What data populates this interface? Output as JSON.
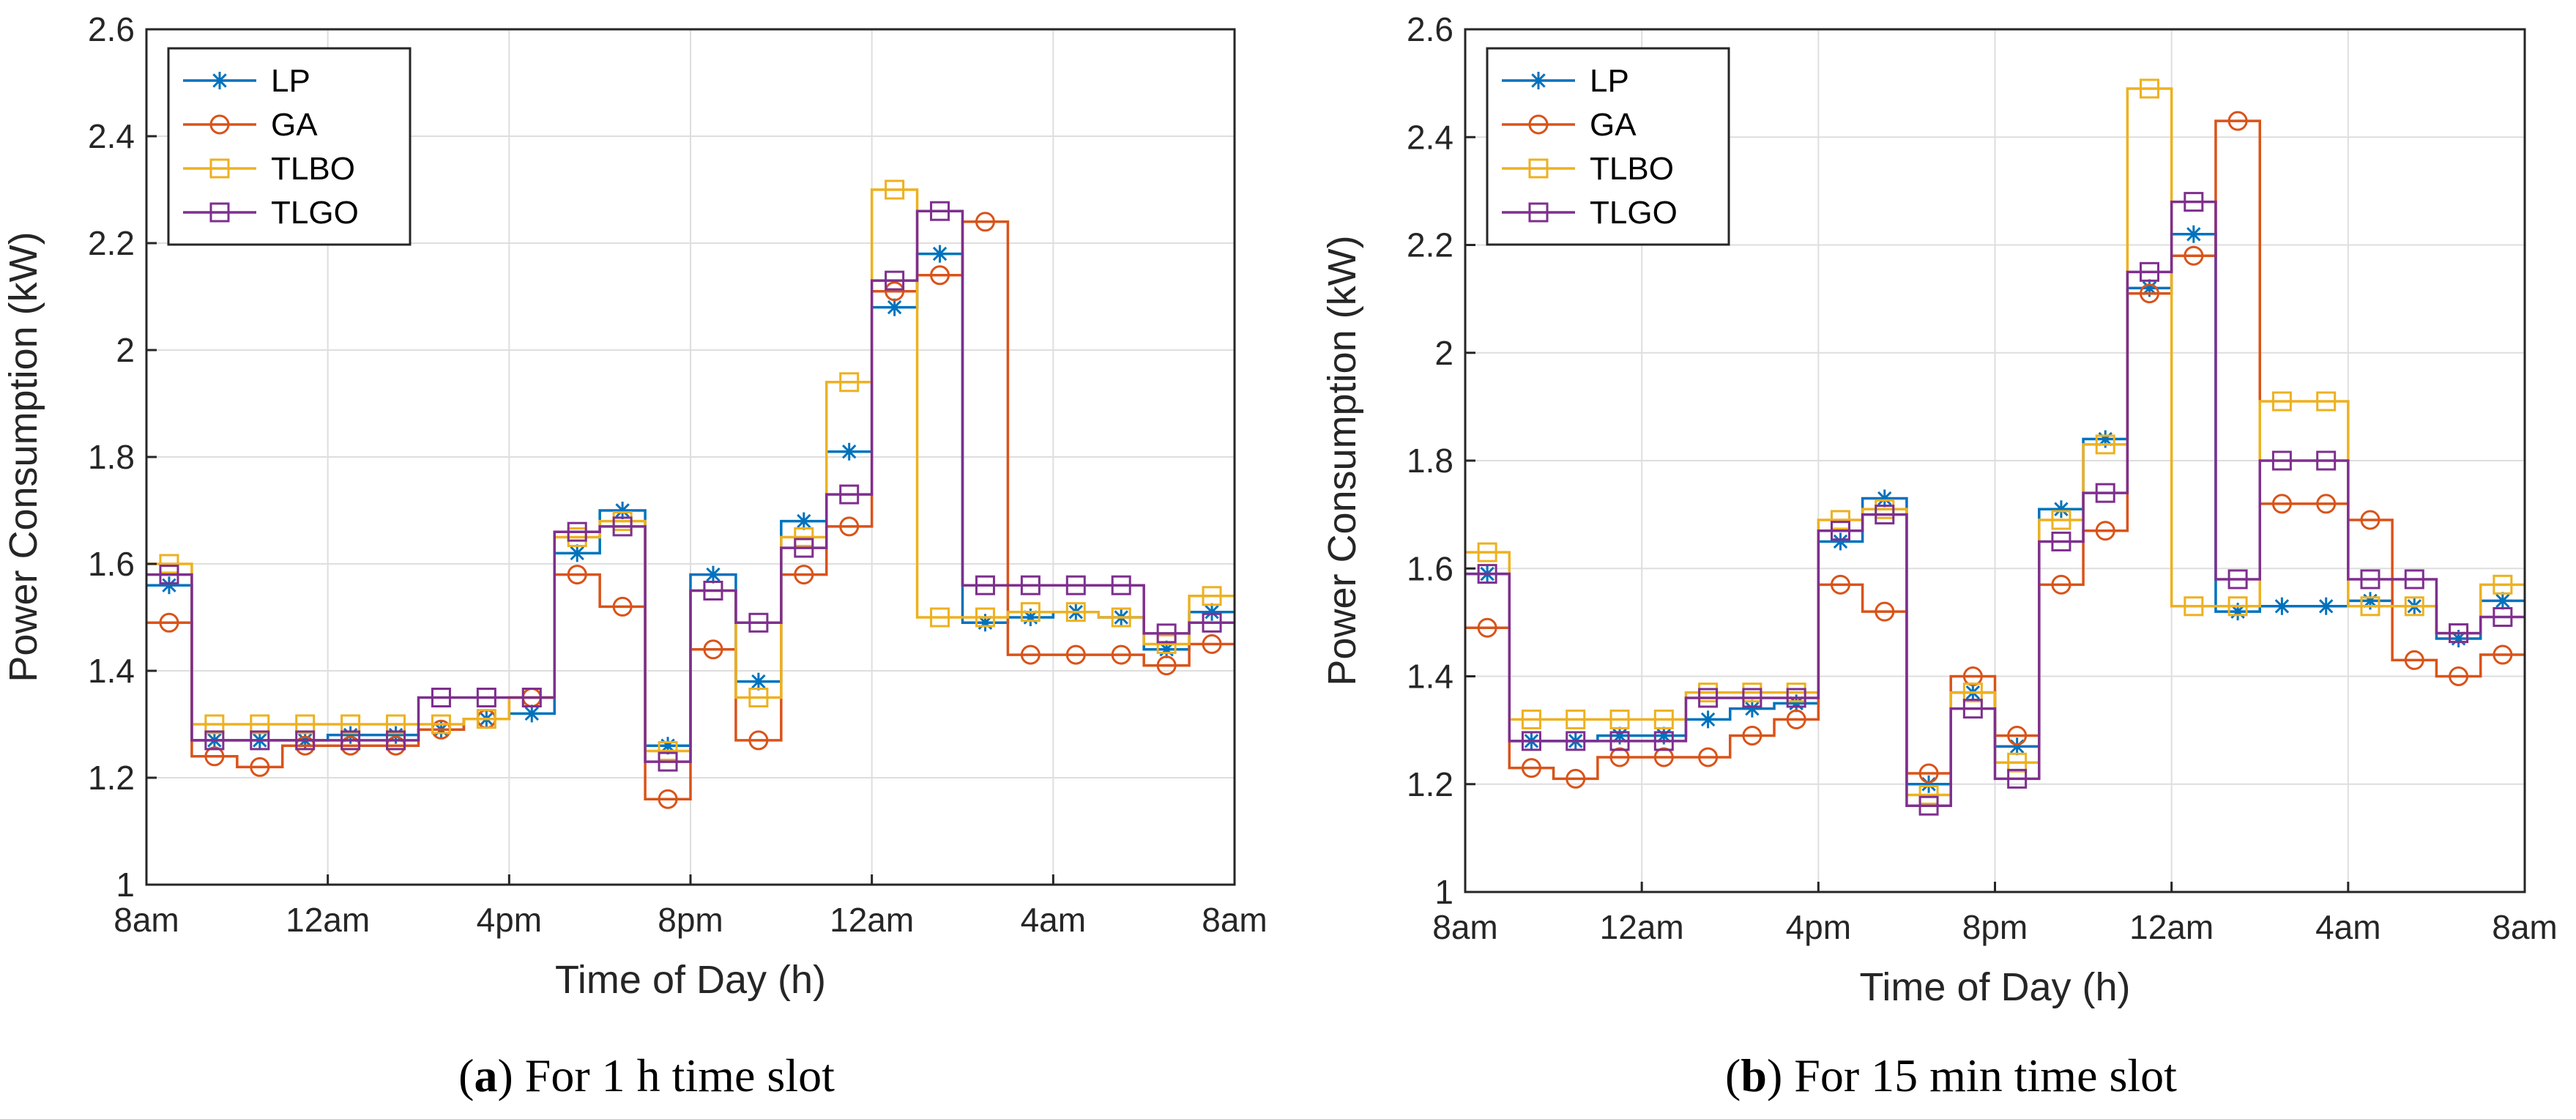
{
  "chart_data": [
    {
      "type": "line",
      "id": "a",
      "caption_letter": "a",
      "caption_open": "(",
      "caption_close": ")",
      "caption_text": " For 1 h time slot",
      "xlabel": "Time of Day (h)",
      "ylabel": "Power Consumption (kW)",
      "xlim": [
        0,
        24
      ],
      "ylim": [
        1,
        2.6
      ],
      "xticks": [
        0,
        4,
        8,
        12,
        16,
        20,
        24
      ],
      "xtick_labels": [
        "8am",
        "12am",
        "4pm",
        "8pm",
        "12am",
        "4am",
        "8am"
      ],
      "yticks": [
        1,
        1.2,
        1.4,
        1.6,
        1.8,
        2,
        2.2,
        2.4,
        2.6
      ],
      "ytick_labels": [
        "1",
        "1.2",
        "1.4",
        "1.6",
        "1.8",
        "2",
        "2.2",
        "2.4",
        "2.6"
      ],
      "grid": true,
      "legend_position": "top-left",
      "step": "post",
      "x": [
        0,
        1,
        2,
        3,
        4,
        5,
        6,
        7,
        8,
        9,
        10,
        11,
        12,
        13,
        14,
        15,
        16,
        17,
        18,
        19,
        20,
        21,
        22,
        23,
        24
      ],
      "series": [
        {
          "name": "LP",
          "color": "#0072BD",
          "marker": "asterisk",
          "values": [
            1.56,
            1.27,
            1.27,
            1.27,
            1.28,
            1.28,
            1.29,
            1.31,
            1.32,
            1.62,
            1.7,
            1.26,
            1.58,
            1.38,
            1.68,
            1.81,
            2.08,
            2.18,
            1.49,
            1.5,
            1.51,
            1.5,
            1.44,
            1.51,
            1.51
          ]
        },
        {
          "name": "GA",
          "color": "#D95319",
          "marker": "circle",
          "values": [
            1.49,
            1.24,
            1.22,
            1.26,
            1.26,
            1.26,
            1.29,
            1.31,
            1.35,
            1.58,
            1.52,
            1.16,
            1.44,
            1.27,
            1.58,
            1.67,
            2.11,
            2.14,
            2.24,
            1.43,
            1.43,
            1.43,
            1.41,
            1.45,
            1.45
          ]
        },
        {
          "name": "TLBO",
          "color": "#EDB120",
          "marker": "square",
          "values": [
            1.6,
            1.3,
            1.3,
            1.3,
            1.3,
            1.3,
            1.3,
            1.31,
            1.35,
            1.65,
            1.68,
            1.25,
            1.55,
            1.35,
            1.65,
            1.94,
            2.3,
            1.5,
            1.5,
            1.51,
            1.51,
            1.5,
            1.45,
            1.54,
            1.54
          ]
        },
        {
          "name": "TLGO",
          "color": "#7E2F8E",
          "marker": "square",
          "values": [
            1.58,
            1.27,
            1.27,
            1.27,
            1.27,
            1.27,
            1.35,
            1.35,
            1.35,
            1.66,
            1.67,
            1.23,
            1.55,
            1.49,
            1.63,
            1.73,
            2.13,
            2.26,
            1.56,
            1.56,
            1.56,
            1.56,
            1.47,
            1.49,
            1.49
          ]
        }
      ]
    },
    {
      "type": "line",
      "id": "b",
      "caption_letter": "b",
      "caption_open": "(",
      "caption_close": ")",
      "caption_text": " For 15 min time slot",
      "xlabel": "Time of Day (h)",
      "ylabel": "Power Consumption (kW)",
      "xlim": [
        0,
        24
      ],
      "ylim": [
        1,
        2.6
      ],
      "xticks": [
        0,
        4,
        8,
        12,
        16,
        20,
        24
      ],
      "xtick_labels": [
        "8am",
        "12am",
        "4pm",
        "8pm",
        "12am",
        "4am",
        "8am"
      ],
      "yticks": [
        1,
        1.2,
        1.4,
        1.6,
        1.8,
        2,
        2.2,
        2.4,
        2.6
      ],
      "ytick_labels": [
        "1",
        "1.2",
        "1.4",
        "1.6",
        "1.8",
        "2",
        "2.2",
        "2.4",
        "2.6"
      ],
      "grid": true,
      "legend_position": "top-left",
      "step": "post",
      "x": [
        0,
        1,
        2,
        3,
        4,
        5,
        6,
        7,
        8,
        9,
        10,
        11,
        12,
        13,
        14,
        15,
        16,
        17,
        18,
        19,
        20,
        21,
        22,
        23,
        24
      ],
      "series": [
        {
          "name": "LP",
          "color": "#0072BD",
          "marker": "asterisk",
          "values": [
            1.59,
            1.28,
            1.28,
            1.29,
            1.29,
            1.32,
            1.34,
            1.35,
            1.65,
            1.73,
            1.2,
            1.37,
            1.27,
            1.71,
            1.84,
            2.12,
            2.22,
            1.52,
            1.53,
            1.53,
            1.54,
            1.53,
            1.47,
            1.54,
            1.54
          ]
        },
        {
          "name": "GA",
          "color": "#D95319",
          "marker": "circle",
          "values": [
            1.49,
            1.23,
            1.21,
            1.25,
            1.25,
            1.25,
            1.29,
            1.32,
            1.57,
            1.52,
            1.22,
            1.4,
            1.29,
            1.57,
            1.67,
            2.11,
            2.18,
            2.43,
            1.72,
            1.72,
            1.69,
            1.43,
            1.4,
            1.44,
            1.44
          ]
        },
        {
          "name": "TLBO",
          "color": "#EDB120",
          "marker": "square",
          "values": [
            1.63,
            1.32,
            1.32,
            1.32,
            1.32,
            1.37,
            1.37,
            1.37,
            1.69,
            1.71,
            1.18,
            1.37,
            1.24,
            1.69,
            1.83,
            2.49,
            1.53,
            1.53,
            1.91,
            1.91,
            1.53,
            1.53,
            1.48,
            1.57,
            1.57
          ]
        },
        {
          "name": "TLGO",
          "color": "#7E2F8E",
          "marker": "square",
          "values": [
            1.59,
            1.28,
            1.28,
            1.28,
            1.28,
            1.36,
            1.36,
            1.36,
            1.67,
            1.7,
            1.16,
            1.34,
            1.21,
            1.65,
            1.74,
            2.15,
            2.28,
            1.58,
            1.8,
            1.8,
            1.58,
            1.58,
            1.48,
            1.51,
            1.51
          ]
        }
      ]
    }
  ]
}
